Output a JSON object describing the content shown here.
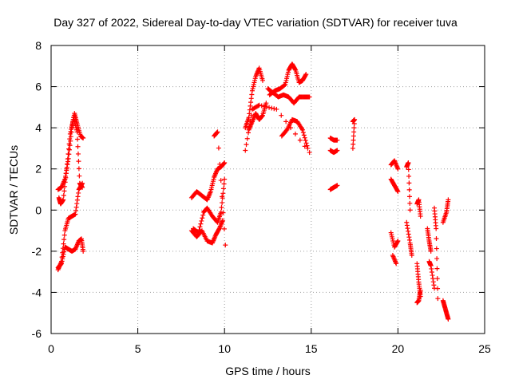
{
  "chart_data": {
    "type": "scatter",
    "title": "Day 327 of 2022, Sidereal Day-to-day VTEC variation (SDTVAR) for receiver tuva",
    "xlabel": "GPS time / hours",
    "ylabel": "SDTVAR / TECUs",
    "xlim": [
      0,
      25
    ],
    "ylim": [
      -6,
      8
    ],
    "xticks": [
      0,
      5,
      10,
      15,
      20,
      25
    ],
    "yticks": [
      -6,
      -4,
      -2,
      0,
      2,
      4,
      6,
      8
    ],
    "grid": true,
    "marker": "+",
    "marker_color": "#ff0000",
    "tracks": [
      {
        "x": [
          0.4,
          0.6,
          0.8,
          1.0,
          1.2,
          1.35,
          1.5,
          1.7,
          1.85
        ],
        "y": [
          1.0,
          1.1,
          1.5,
          2.5,
          4.0,
          4.7,
          4.2,
          3.6,
          3.5
        ]
      },
      {
        "x": [
          0.45,
          0.55,
          0.7,
          0.9,
          1.1,
          1.3,
          1.5,
          1.65,
          1.8
        ],
        "y": [
          0.6,
          0.3,
          0.5,
          2.0,
          3.7,
          4.5,
          3.8,
          1.3,
          1.1
        ]
      },
      {
        "x": [
          0.4,
          0.6,
          0.8,
          1.0,
          1.2,
          1.4,
          1.6,
          1.8
        ],
        "y": [
          -2.9,
          -2.5,
          -1.0,
          -0.4,
          -0.3,
          -0.2,
          1.0,
          1.3
        ]
      },
      {
        "x": [
          0.4,
          0.6,
          0.8,
          1.0,
          1.2,
          1.4,
          1.6,
          1.75,
          1.85
        ],
        "y": [
          -2.8,
          -2.6,
          -1.8,
          -1.9,
          -2.0,
          -1.9,
          -1.5,
          -1.4,
          -2.0
        ]
      },
      {
        "x": [
          8.1,
          8.4,
          8.7,
          9.0,
          9.2,
          9.4,
          9.6,
          9.8,
          10.0
        ],
        "y": [
          0.6,
          0.9,
          0.7,
          0.5,
          0.9,
          1.6,
          2.0,
          2.1,
          2.3
        ]
      },
      {
        "x": [
          8.2,
          8.5,
          8.8,
          9.0,
          9.3,
          9.6,
          9.8,
          10.0
        ],
        "y": [
          -0.9,
          -1.1,
          -0.1,
          0.1,
          -0.3,
          -0.6,
          -0.1,
          1.5
        ]
      },
      {
        "x": [
          8.1,
          8.4,
          8.7,
          9.0,
          9.3,
          9.5,
          9.7,
          9.9
        ],
        "y": [
          -1.0,
          -1.3,
          -1.0,
          -1.5,
          -1.6,
          -1.2,
          -0.9,
          -0.5
        ]
      },
      {
        "x": [
          9.4,
          9.6,
          10.05
        ],
        "y": [
          3.6,
          3.8,
          -1.7
        ]
      },
      {
        "x": [
          11.2,
          11.4,
          11.6,
          11.8,
          12.0,
          12.2
        ],
        "y": [
          4.0,
          4.5,
          5.8,
          6.5,
          6.9,
          6.3
        ]
      },
      {
        "x": [
          11.4,
          11.6,
          11.8,
          12.0,
          12.2,
          12.4
        ],
        "y": [
          3.9,
          4.3,
          4.7,
          4.4,
          4.6,
          5.2
        ]
      },
      {
        "x": [
          12.5,
          12.8,
          13.1,
          13.4,
          13.7,
          14.0,
          14.3,
          14.6,
          14.9
        ],
        "y": [
          5.9,
          5.7,
          5.5,
          5.6,
          5.5,
          5.2,
          5.5,
          5.5,
          5.5
        ]
      },
      {
        "x": [
          12.6,
          12.9,
          13.2,
          13.5,
          13.7,
          13.9,
          14.1,
          14.3,
          14.5,
          14.7
        ],
        "y": [
          5.6,
          5.8,
          5.9,
          6.1,
          6.8,
          7.1,
          6.8,
          6.2,
          6.3,
          6.6
        ]
      },
      {
        "x": [
          13.3,
          13.6,
          13.9,
          14.2,
          14.5,
          14.8
        ],
        "y": [
          3.6,
          3.9,
          4.4,
          4.3,
          3.9,
          3.0
        ]
      },
      {
        "x": [
          11.2,
          11.6,
          12.0,
          13.0,
          14.9
        ],
        "y": [
          2.9,
          4.9,
          5.1,
          4.9,
          2.8
        ]
      },
      {
        "x": [
          16.1,
          16.3,
          16.5
        ],
        "y": [
          1.0,
          1.1,
          1.2
        ]
      },
      {
        "x": [
          16.1,
          16.3,
          16.5
        ],
        "y": [
          2.9,
          2.8,
          2.9
        ]
      },
      {
        "x": [
          16.1,
          16.3,
          16.5
        ],
        "y": [
          3.5,
          3.4,
          3.4
        ]
      },
      {
        "x": [
          17.4,
          17.5,
          17.4
        ],
        "y": [
          4.3,
          4.4,
          3.0
        ]
      },
      {
        "x": [
          19.6,
          19.8,
          20.0
        ],
        "y": [
          2.2,
          2.4,
          2.0
        ]
      },
      {
        "x": [
          19.6,
          19.8,
          20.0
        ],
        "y": [
          1.5,
          1.2,
          0.9
        ]
      },
      {
        "x": [
          19.6,
          19.8,
          20.0
        ],
        "y": [
          -1.1,
          -1.8,
          -1.5
        ]
      },
      {
        "x": [
          19.7,
          19.9
        ],
        "y": [
          -2.2,
          -2.6
        ]
      },
      {
        "x": [
          20.5,
          20.6,
          20.7
        ],
        "y": [
          2.1,
          2.3,
          0.0
        ]
      },
      {
        "x": [
          20.5,
          20.7,
          20.8
        ],
        "y": [
          -0.6,
          -1.6,
          -2.2
        ]
      },
      {
        "x": [
          21.1,
          21.2,
          21.3
        ],
        "y": [
          0.3,
          0.5,
          -0.3
        ]
      },
      {
        "x": [
          21.1,
          21.2,
          21.3
        ],
        "y": [
          -2.6,
          -3.5,
          -4.2
        ]
      },
      {
        "x": [
          21.1,
          21.2,
          21.3
        ],
        "y": [
          -4.5,
          -4.4,
          -3.9
        ]
      },
      {
        "x": [
          21.7,
          21.8,
          21.9
        ],
        "y": [
          -0.9,
          -1.5,
          -2.0
        ]
      },
      {
        "x": [
          21.8,
          21.9,
          22.1
        ],
        "y": [
          -2.5,
          -2.7,
          -3.8
        ]
      },
      {
        "x": [
          22.1,
          22.2,
          22.3
        ],
        "y": [
          0.1,
          -0.9,
          -4.3
        ]
      },
      {
        "x": [
          22.6,
          22.8,
          22.9
        ],
        "y": [
          -0.6,
          -0.1,
          0.5
        ]
      },
      {
        "x": [
          22.6,
          22.7,
          22.8,
          22.9
        ],
        "y": [
          -4.4,
          -4.7,
          -5.0,
          -5.3
        ]
      }
    ]
  }
}
